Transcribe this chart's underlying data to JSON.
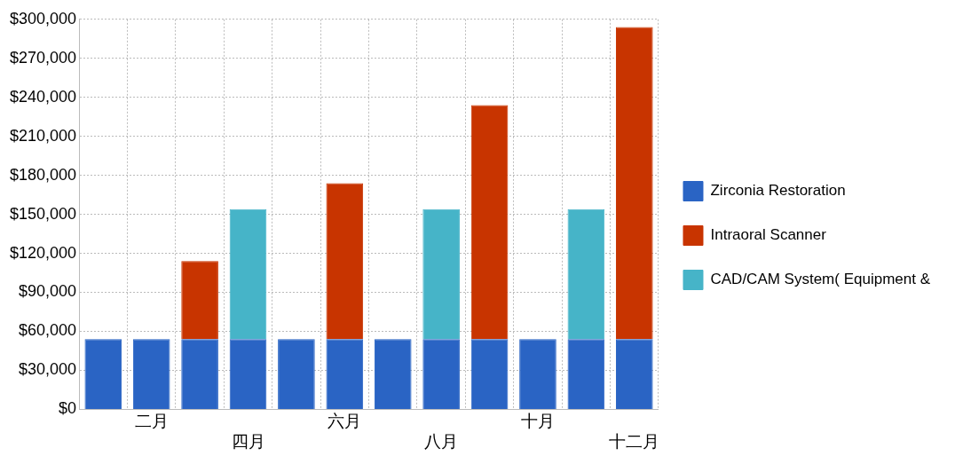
{
  "chart_data": {
    "type": "bar",
    "stacked": true,
    "categories": [
      null,
      "二月",
      null,
      "四月",
      null,
      "六月",
      null,
      "八月",
      null,
      "十月",
      null,
      "十二月"
    ],
    "series": [
      {
        "name": "Zirconia Restoration",
        "color": "#2a64c4",
        "values": [
          54000,
          54000,
          54000,
          54000,
          54000,
          54000,
          54000,
          54000,
          54000,
          54000,
          54000,
          54000
        ]
      },
      {
        "name": "Intraoral Scanner",
        "color": "#c83400",
        "values": [
          null,
          null,
          60000,
          null,
          null,
          120000,
          null,
          null,
          180000,
          null,
          null,
          240000
        ]
      },
      {
        "name": "CAD/CAM System( Equipment &",
        "color": "#46b4c8",
        "values": [
          null,
          null,
          null,
          100000,
          null,
          null,
          null,
          100000,
          null,
          null,
          100000,
          null
        ]
      }
    ],
    "ylim": [
      0,
      300000
    ],
    "yticks": [
      {
        "value": 0,
        "label": "$0"
      },
      {
        "value": 30000,
        "label": "$30,000"
      },
      {
        "value": 60000,
        "label": "$60,000"
      },
      {
        "value": 90000,
        "label": "$90,000"
      },
      {
        "value": 120000,
        "label": "$120,000"
      },
      {
        "value": 150000,
        "label": "$150,000"
      },
      {
        "value": 180000,
        "label": "$180,000"
      },
      {
        "value": 210000,
        "label": "$210,000"
      },
      {
        "value": 240000,
        "label": "$240,000"
      },
      {
        "value": 270000,
        "label": "$270,000"
      },
      {
        "value": 300000,
        "label": "$300,000"
      }
    ],
    "grid": true,
    "legend": "right"
  }
}
